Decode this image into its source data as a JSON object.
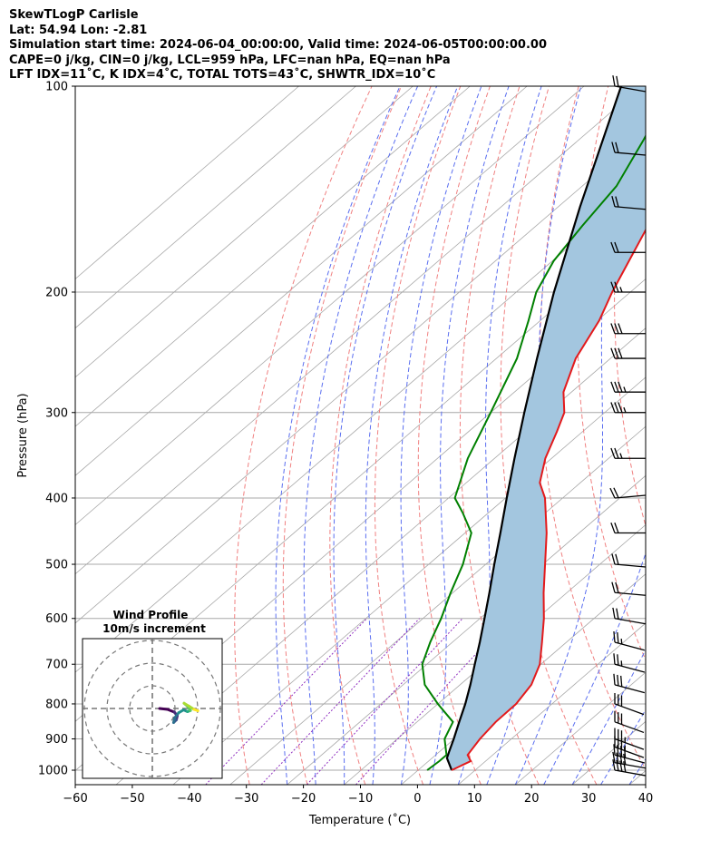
{
  "header": {
    "line1": "SkewTLogP Carlisle",
    "line2": "Lat: 54.94   Lon: -2.81",
    "line3": "Simulation start time: 2024-06-04_00:00:00, Valid time: 2024-06-05T00:00:00.00",
    "line4": "CAPE=0 j/kg, CIN=0 j/kg, LCL=959 hPa, LFC=nan hPa, EQ=nan hPa",
    "line5": "LFT IDX=11˚C, K IDX=4˚C, TOTAL TOTS=43˚C, SHWTR_IDX=10˚C"
  },
  "colors": {
    "temperature": "#e31a1c",
    "dewpoint": "#008000",
    "parcel": "#000000",
    "shade": "#a3c6df",
    "dry_adiabat": "#f08080",
    "moist_adiabat": "#5a6ef0",
    "mixing_ratio": "#9030c0",
    "isotherm": "#a8a8a8"
  },
  "chart_data": {
    "type": "skew-t",
    "xlabel": "Temperature (˚C)",
    "ylabel": "Pressure (hPa)",
    "xlim": [
      -60,
      40
    ],
    "ylim": [
      1050,
      100
    ],
    "x_ticks": [
      "−60",
      "−50",
      "−40",
      "−30",
      "−20",
      "−10",
      "0",
      "10",
      "20",
      "30",
      "40"
    ],
    "y_ticks": [
      "100",
      "200",
      "300",
      "400",
      "500",
      "600",
      "700",
      "800",
      "900",
      "1000"
    ],
    "grid": true,
    "series": [
      {
        "role": "temperature",
        "points": [
          [
            1000,
            5.9
          ],
          [
            970,
            7.4
          ],
          [
            950,
            5.6
          ],
          [
            900,
            4.5
          ],
          [
            850,
            3.8
          ],
          [
            800,
            3.7
          ],
          [
            750,
            2.5
          ],
          [
            700,
            -0.2
          ],
          [
            650,
            -4.3
          ],
          [
            600,
            -8.8
          ],
          [
            550,
            -14.1
          ],
          [
            500,
            -19.6
          ],
          [
            450,
            -25.7
          ],
          [
            400,
            -33.1
          ],
          [
            380,
            -37.1
          ],
          [
            350,
            -41.1
          ],
          [
            320,
            -44.5
          ],
          [
            300,
            -47.1
          ],
          [
            280,
            -51.4
          ],
          [
            250,
            -56.1
          ],
          [
            220,
            -59.7
          ],
          [
            200,
            -63.2
          ],
          [
            180,
            -66.6
          ],
          [
            160,
            -70.4
          ],
          [
            140,
            -73.3
          ],
          [
            130,
            -75.6
          ],
          [
            120,
            -79.2
          ],
          [
            110,
            -82.4
          ],
          [
            100,
            -85.8
          ]
        ]
      },
      {
        "role": "dewpoint",
        "points": [
          [
            1000,
            1.6
          ],
          [
            970,
            1.9
          ],
          [
            950,
            1.9
          ],
          [
            900,
            -1.7
          ],
          [
            850,
            -3.7
          ],
          [
            800,
            -10.0
          ],
          [
            750,
            -16.2
          ],
          [
            700,
            -20.8
          ],
          [
            650,
            -23.9
          ],
          [
            600,
            -26.8
          ],
          [
            550,
            -30.4
          ],
          [
            500,
            -34.0
          ],
          [
            450,
            -38.9
          ],
          [
            420,
            -44.6
          ],
          [
            400,
            -48.9
          ],
          [
            350,
            -54.7
          ],
          [
            300,
            -60.0
          ],
          [
            250,
            -66.4
          ],
          [
            220,
            -72.1
          ],
          [
            200,
            -76.5
          ],
          [
            180,
            -79.8
          ],
          [
            160,
            -81.9
          ],
          [
            140,
            -84.0
          ],
          [
            120,
            -88.6
          ],
          [
            100,
            -94.3
          ]
        ]
      },
      {
        "role": "parcel",
        "points": [
          [
            1000,
            5.9
          ],
          [
            960,
            2.6
          ],
          [
            940,
            1.7
          ],
          [
            900,
            -0.1
          ],
          [
            850,
            -2.6
          ],
          [
            800,
            -5.2
          ],
          [
            750,
            -8.2
          ],
          [
            700,
            -11.6
          ],
          [
            650,
            -15.2
          ],
          [
            600,
            -19.2
          ],
          [
            550,
            -23.6
          ],
          [
            500,
            -28.5
          ],
          [
            450,
            -33.8
          ],
          [
            400,
            -39.8
          ],
          [
            350,
            -46.5
          ],
          [
            300,
            -54.1
          ],
          [
            250,
            -62.9
          ],
          [
            200,
            -73.4
          ],
          [
            150,
            -86.2
          ],
          [
            100,
            -103.5
          ]
        ]
      }
    ],
    "wind_barbs": [
      {
        "p": 1000,
        "speed_kt": 40,
        "dir": 280
      },
      {
        "p": 975,
        "speed_kt": 40,
        "dir": 280
      },
      {
        "p": 950,
        "speed_kt": 40,
        "dir": 285
      },
      {
        "p": 925,
        "speed_kt": 35,
        "dir": 290
      },
      {
        "p": 900,
        "speed_kt": 35,
        "dir": 290
      },
      {
        "p": 850,
        "speed_kt": 30,
        "dir": 290
      },
      {
        "p": 800,
        "speed_kt": 30,
        "dir": 290
      },
      {
        "p": 750,
        "speed_kt": 30,
        "dir": 285
      },
      {
        "p": 700,
        "speed_kt": 25,
        "dir": 285
      },
      {
        "p": 650,
        "speed_kt": 25,
        "dir": 285
      },
      {
        "p": 600,
        "speed_kt": 20,
        "dir": 280
      },
      {
        "p": 550,
        "speed_kt": 20,
        "dir": 275
      },
      {
        "p": 500,
        "speed_kt": 20,
        "dir": 275
      },
      {
        "p": 450,
        "speed_kt": 20,
        "dir": 270
      },
      {
        "p": 400,
        "speed_kt": 20,
        "dir": 265
      },
      {
        "p": 350,
        "speed_kt": 25,
        "dir": 270
      },
      {
        "p": 300,
        "speed_kt": 35,
        "dir": 270
      },
      {
        "p": 280,
        "speed_kt": 35,
        "dir": 270
      },
      {
        "p": 250,
        "speed_kt": 30,
        "dir": 270
      },
      {
        "p": 230,
        "speed_kt": 30,
        "dir": 270
      },
      {
        "p": 200,
        "speed_kt": 25,
        "dir": 270
      },
      {
        "p": 175,
        "speed_kt": 20,
        "dir": 270
      },
      {
        "p": 150,
        "speed_kt": 20,
        "dir": 275
      },
      {
        "p": 125,
        "speed_kt": 20,
        "dir": 275
      },
      {
        "p": 100,
        "speed_kt": 20,
        "dir": 280
      }
    ],
    "hodograph": {
      "title": "Wind Profile",
      "subtitle": "10m/s increment",
      "rings_ms": [
        10,
        20,
        30
      ],
      "points": [
        [
          0,
          0
        ],
        [
          3.5,
          -0.4
        ],
        [
          6.5,
          -1.6
        ],
        [
          7.8,
          -3.2
        ],
        [
          7.4,
          -5.0
        ],
        [
          6.2,
          -6.2
        ],
        [
          6.6,
          -4.2
        ],
        [
          8.4,
          -1.9
        ],
        [
          10.6,
          -0.6
        ],
        [
          12.3,
          -1.4
        ],
        [
          13.6,
          -0.9
        ],
        [
          12.2,
          1.1
        ],
        [
          10.8,
          2.3
        ],
        [
          13.0,
          1.0
        ],
        [
          15.2,
          -0.4
        ],
        [
          16.9,
          -1.0
        ]
      ]
    }
  }
}
